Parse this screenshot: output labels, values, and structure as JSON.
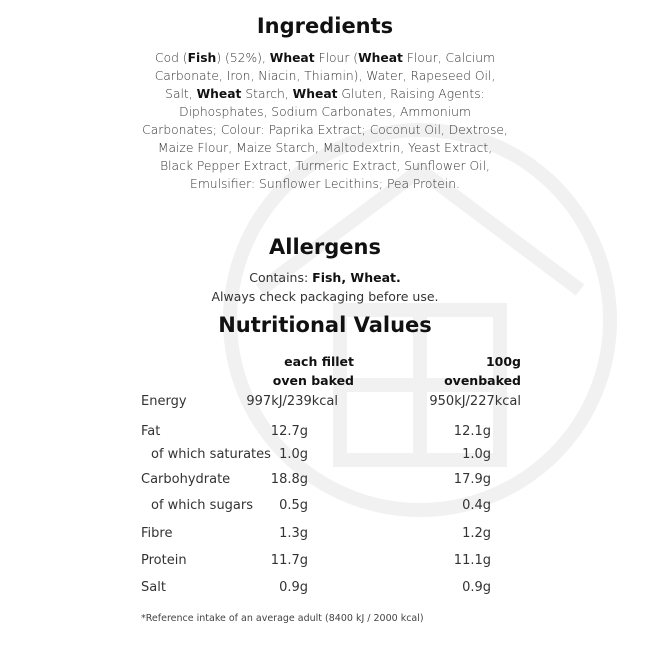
{
  "ingredients": {
    "title": "Ingredients",
    "segments": [
      {
        "text": "Cod (",
        "bold": false
      },
      {
        "text": "Fish",
        "bold": true
      },
      {
        "text": ") (52%), ",
        "bold": false
      },
      {
        "text": "Wheat",
        "bold": true
      },
      {
        "text": " Flour (",
        "bold": false
      },
      {
        "text": "Wheat",
        "bold": true
      },
      {
        "text": " Flour, Calcium Carbonate, Iron, Niacin, Thiamin), Water, Rapeseed Oil, Salt, ",
        "bold": false
      },
      {
        "text": "Wheat",
        "bold": true
      },
      {
        "text": " Starch, ",
        "bold": false
      },
      {
        "text": "Wheat",
        "bold": true
      },
      {
        "text": " Gluten, Raising Agents: Diphosphates, Sodium Carbonates, Ammonium Carbonates; Colour: Paprika Extract; Coconut Oil, Dextrose, Maize Flour, Maize Starch, Maltodextrin, Yeast Extract, Black Pepper Extract, Turmeric Extract, Sunflower Oil, Emulsifier: Sunflower Lecithins; Pea Protein.",
        "bold": false
      }
    ]
  },
  "allergens": {
    "title": "Allergens",
    "contains_label": "Contains: ",
    "contains_value": "Fish, Wheat.",
    "note": "Always check packaging before use."
  },
  "nutrition": {
    "title": "Nutritional Values",
    "col1_header": [
      "each fillet",
      "oven baked"
    ],
    "col2_header": [
      "100g",
      "ovenbaked"
    ],
    "rows": [
      {
        "label": "Energy",
        "v1": "997kJ/239kcal",
        "v2": "950kJ/227kcal"
      },
      {
        "label": "Fat",
        "v1": "12.7g",
        "v2": "12.1g"
      },
      {
        "label": "of which saturates",
        "v1": "1.0g",
        "v2": "1.0g",
        "sub": true
      },
      {
        "label": "Carbohydrate",
        "v1": "18.8g",
        "v2": "17.9g"
      },
      {
        "label": "of which sugars",
        "v1": "0.5g",
        "v2": "0.4g",
        "sub": true
      },
      {
        "label": "Fibre",
        "v1": "1.3g",
        "v2": "1.2g"
      },
      {
        "label": "Protein",
        "v1": "11.7g",
        "v2": "11.1g"
      },
      {
        "label": "Salt",
        "v1": "0.9g",
        "v2": "0.9g"
      }
    ],
    "footnote": "*Reference intake of an average adult (8400 kJ / 2000 kcal)"
  },
  "colors": {
    "watermark": "#f2f2f2",
    "text": "#333333"
  }
}
